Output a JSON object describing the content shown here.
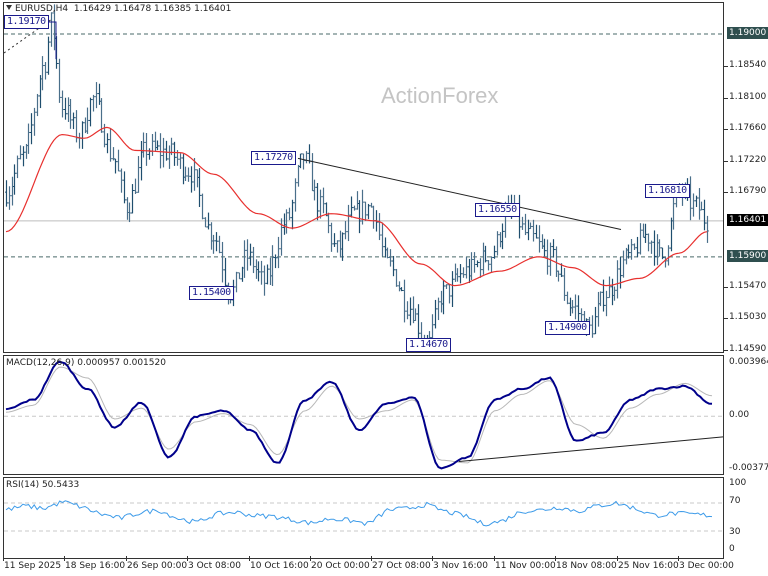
{
  "header": {
    "symbol_label": "EURUSD,H4",
    "open": "1.16429",
    "high": "1.16478",
    "low": "1.16385",
    "close": "1.16401",
    "collapse_icon": "triangle-down-icon"
  },
  "watermark": "ActionForex",
  "price_axis": {
    "ticks": [
      "1.18540",
      "1.18100",
      "1.17660",
      "1.17220",
      "1.16790",
      "1.15470",
      "1.15030",
      "1.14590"
    ],
    "highlighted": [
      {
        "label": "1.19000",
        "bg": "#2f4f4f",
        "role": "resistance"
      },
      {
        "label": "1.16401",
        "bg": "#000000",
        "role": "current-price"
      },
      {
        "label": "1.15900",
        "bg": "#2f4f4f",
        "role": "support"
      }
    ]
  },
  "annotations": [
    {
      "label": "1.19170"
    },
    {
      "label": "1.17270"
    },
    {
      "label": "1.15400"
    },
    {
      "label": "1.14670"
    },
    {
      "label": "1.16550"
    },
    {
      "label": "1.14900"
    },
    {
      "label": "1.16810"
    }
  ],
  "macd": {
    "title": "MACD(12,26,9) 0.000957 0.001520",
    "axis": [
      "0.003964",
      "0.00",
      "-0.003774"
    ]
  },
  "rsi": {
    "title": "RSI(14) 50.5433",
    "axis": [
      "100",
      "70",
      "30",
      "0"
    ]
  },
  "time_axis": [
    "11 Sep 2025",
    "18 Sep 16:00",
    "26 Sep 00:00",
    "3 Oct 08:00",
    "10 Oct 16:00",
    "20 Oct 00:00",
    "27 Oct 08:00",
    "3 Nov 16:00",
    "11 Nov 00:00",
    "18 Nov 08:00",
    "25 Nov 16:00",
    "3 Dec 00:00"
  ],
  "colors": {
    "bars": "#4a6f8a",
    "ma": "#e8302e",
    "macd_main": "#00008b",
    "macd_signal": "#b8b8b8",
    "rsi": "#3d9be9",
    "trendline": "#222222",
    "annotation": "#1a1a8c"
  },
  "chart_data": [
    {
      "type": "line",
      "title": "EURUSD,H4 1.16429 1.16478 1.16385 1.16401",
      "subtype": "ohlc-bars",
      "x": [
        "11 Sep 2025",
        "18 Sep 16:00",
        "26 Sep 00:00",
        "3 Oct 08:00",
        "10 Oct 16:00",
        "20 Oct 00:00",
        "27 Oct 08:00",
        "3 Nov 16:00",
        "11 Nov 00:00",
        "18 Nov 08:00",
        "25 Nov 16:00",
        "3 Dec 00:00"
      ],
      "price_path_keypoints": [
        {
          "i": 0,
          "price": 1.168
        },
        {
          "i": 6,
          "price": 1.173
        },
        {
          "i": 14,
          "price": 1.186
        },
        {
          "i": 16,
          "price": 1.1917
        },
        {
          "i": 20,
          "price": 1.18
        },
        {
          "i": 26,
          "price": 1.176
        },
        {
          "i": 31,
          "price": 1.181
        },
        {
          "i": 38,
          "price": 1.173
        },
        {
          "i": 43,
          "price": 1.166
        },
        {
          "i": 50,
          "price": 1.174
        },
        {
          "i": 58,
          "price": 1.1735
        },
        {
          "i": 65,
          "price": 1.171
        },
        {
          "i": 74,
          "price": 1.162
        },
        {
          "i": 80,
          "price": 1.154
        },
        {
          "i": 86,
          "price": 1.159
        },
        {
          "i": 92,
          "price": 1.1555
        },
        {
          "i": 100,
          "price": 1.164
        },
        {
          "i": 106,
          "price": 1.1727
        },
        {
          "i": 112,
          "price": 1.166
        },
        {
          "i": 118,
          "price": 1.16
        },
        {
          "i": 124,
          "price": 1.165
        },
        {
          "i": 130,
          "price": 1.166
        },
        {
          "i": 136,
          "price": 1.158
        },
        {
          "i": 144,
          "price": 1.152
        },
        {
          "i": 150,
          "price": 1.1467
        },
        {
          "i": 156,
          "price": 1.154
        },
        {
          "i": 164,
          "price": 1.157
        },
        {
          "i": 172,
          "price": 1.159
        },
        {
          "i": 180,
          "price": 1.1655
        },
        {
          "i": 186,
          "price": 1.162
        },
        {
          "i": 194,
          "price": 1.159
        },
        {
          "i": 202,
          "price": 1.152
        },
        {
          "i": 208,
          "price": 1.149
        },
        {
          "i": 214,
          "price": 1.154
        },
        {
          "i": 222,
          "price": 1.159
        },
        {
          "i": 228,
          "price": 1.162
        },
        {
          "i": 234,
          "price": 1.159
        },
        {
          "i": 240,
          "price": 1.1681
        },
        {
          "i": 246,
          "price": 1.166
        },
        {
          "i": 250,
          "price": 1.164
        }
      ],
      "moving_average_keypoints": [
        {
          "i": 0,
          "price": 1.1625
        },
        {
          "i": 20,
          "price": 1.176
        },
        {
          "i": 28,
          "price": 1.1755
        },
        {
          "i": 36,
          "price": 1.177
        },
        {
          "i": 46,
          "price": 1.1738
        },
        {
          "i": 62,
          "price": 1.1735
        },
        {
          "i": 74,
          "price": 1.1705
        },
        {
          "i": 90,
          "price": 1.165
        },
        {
          "i": 102,
          "price": 1.163
        },
        {
          "i": 116,
          "price": 1.165
        },
        {
          "i": 132,
          "price": 1.164
        },
        {
          "i": 148,
          "price": 1.158
        },
        {
          "i": 160,
          "price": 1.155
        },
        {
          "i": 176,
          "price": 1.157
        },
        {
          "i": 190,
          "price": 1.159
        },
        {
          "i": 202,
          "price": 1.1575
        },
        {
          "i": 214,
          "price": 1.155
        },
        {
          "i": 226,
          "price": 1.156
        },
        {
          "i": 240,
          "price": 1.1595
        },
        {
          "i": 250,
          "price": 1.1625
        }
      ],
      "horizontal_lines": [
        1.19,
        1.16401,
        1.159
      ],
      "trendline": {
        "from": 1.1727,
        "to": 1.1628
      },
      "swing_labels": [
        1.1917,
        1.1727,
        1.154,
        1.1467,
        1.1655,
        1.149,
        1.1681
      ],
      "ylim": [
        1.1459,
        1.194
      ],
      "yticks": [
        1.1854,
        1.181,
        1.1766,
        1.1722,
        1.1679,
        1.1547,
        1.1503,
        1.1459
      ],
      "grid": false
    },
    {
      "type": "line",
      "title": "MACD(12,26,9) 0.000957 0.001520",
      "series": [
        {
          "name": "MACD",
          "keypoints": [
            0.0005,
            0.0012,
            0.004,
            0.002,
            -0.0008,
            0.001,
            -0.003,
            0.0,
            0.0004,
            -0.001,
            -0.0034,
            0.0012,
            0.0025,
            -0.001,
            0.0009,
            0.0014,
            -0.0038,
            -0.003,
            0.0012,
            0.002,
            0.0028,
            -0.0018,
            -0.0012,
            0.0012,
            0.002,
            0.0022,
            0.0009
          ]
        },
        {
          "name": "Signal",
          "keypoints": [
            0.0003,
            0.0008,
            0.0036,
            0.0028,
            -0.0002,
            0.0006,
            -0.0024,
            -0.0004,
            0.0002,
            -0.0006,
            -0.0028,
            0.0004,
            0.0022,
            -0.0002,
            0.0004,
            0.0012,
            -0.0032,
            -0.0034,
            0.0004,
            0.0016,
            0.0026,
            -0.0006,
            -0.0016,
            0.0006,
            0.0016,
            0.0024,
            0.0015
          ]
        }
      ],
      "last_values": {
        "macd": 0.000957,
        "signal": 0.00152
      },
      "ylim": [
        -0.003774,
        0.003964
      ],
      "zero_line": true
    },
    {
      "type": "line",
      "title": "RSI(14) 50.5433",
      "series": [
        {
          "name": "RSI(14)",
          "keypoints": [
            60,
            66,
            62,
            72,
            64,
            54,
            48,
            56,
            60,
            48,
            42,
            54,
            57,
            52,
            51,
            46,
            41,
            48,
            45,
            40,
            60,
            62,
            68,
            58,
            52,
            40,
            44,
            58,
            60,
            64,
            58,
            66,
            70,
            62,
            52,
            55,
            54,
            52
          ]
        }
      ],
      "last_value": 50.5433,
      "ylim": [
        0,
        100
      ],
      "levels": [
        70,
        30
      ]
    }
  ]
}
